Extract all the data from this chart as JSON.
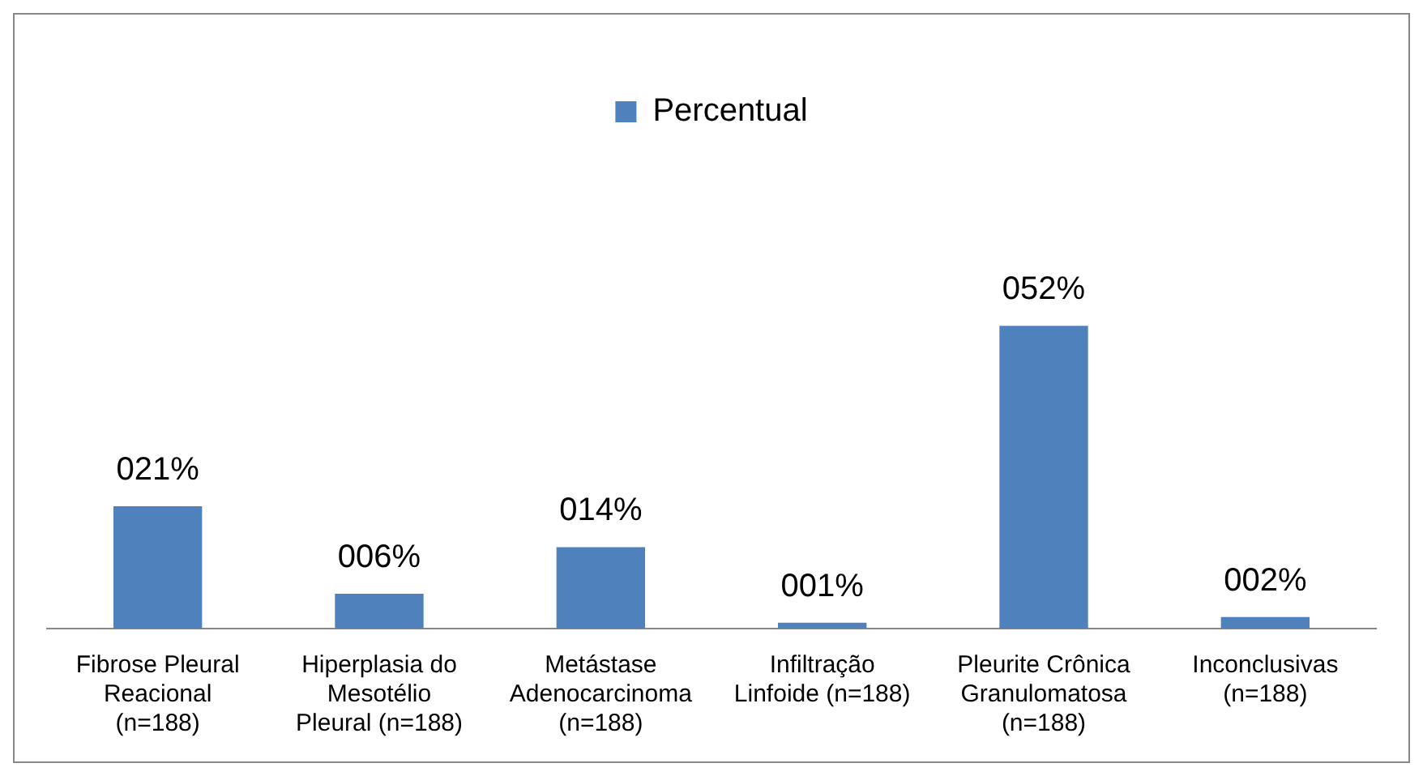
{
  "chart_data": {
    "type": "bar",
    "categories": [
      "Fibrose Pleural Reacional (n=188)",
      "Hiperplasia do Mesotélio Pleural (n=188)",
      "Metástase Adenocarcinoma (n=188)",
      "Infiltração Linfoide (n=188)",
      "Pleurite Crônica Granulomatosa (n=188)",
      "Inconclusivas (n=188)"
    ],
    "series": [
      {
        "name": "Percentual",
        "color": "#4f81bd",
        "values": [
          21,
          6,
          14,
          1,
          52,
          2
        ],
        "value_labels": [
          "021%",
          "006%",
          "014%",
          "001%",
          "052%",
          "002%"
        ]
      }
    ],
    "legend": "top",
    "grid": false
  }
}
